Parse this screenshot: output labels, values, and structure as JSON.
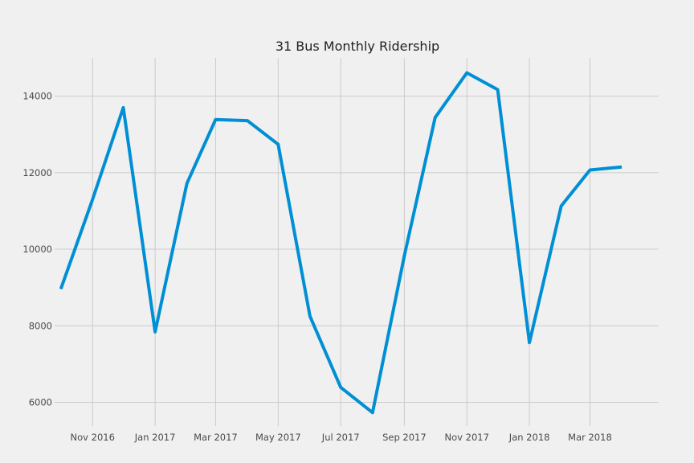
{
  "chart_data": {
    "type": "line",
    "title": "31 Bus Monthly Ridership",
    "xlabel": "",
    "ylabel": "",
    "x": [
      "2016-10",
      "2016-11",
      "2016-12",
      "2017-01",
      "2017-02",
      "2017-03",
      "2017-04",
      "2017-05",
      "2017-06",
      "2017-07",
      "2017-08",
      "2017-09",
      "2017-10",
      "2017-11",
      "2017-12",
      "2018-01",
      "2018-02",
      "2018-03",
      "2018-04"
    ],
    "series": [
      {
        "values": [
          8960,
          11300,
          13700,
          7840,
          11720,
          13390,
          13360,
          12740,
          8250,
          6390,
          5730,
          9830,
          13440,
          14610,
          14170,
          7560,
          11130,
          12070,
          12150
        ],
        "color": "#008fd5"
      }
    ],
    "xticks": [
      "Nov 2016",
      "Jan 2017",
      "Mar 2017",
      "May 2017",
      "Jul 2017",
      "Sep 2017",
      "Nov 2017",
      "Jan 2018",
      "Mar 2018"
    ],
    "xtick_dates": [
      "2016-11",
      "2017-01",
      "2017-03",
      "2017-05",
      "2017-07",
      "2017-09",
      "2017-11",
      "2018-01",
      "2018-03"
    ],
    "yticks": [
      6000,
      8000,
      10000,
      12000,
      14000
    ],
    "ylim": [
      5380,
      15000
    ],
    "xlim": [
      "2016-09-25",
      "2018-05-07"
    ],
    "grid": true,
    "background": "#f0f0f0",
    "grid_color": "#cbcbcb"
  }
}
